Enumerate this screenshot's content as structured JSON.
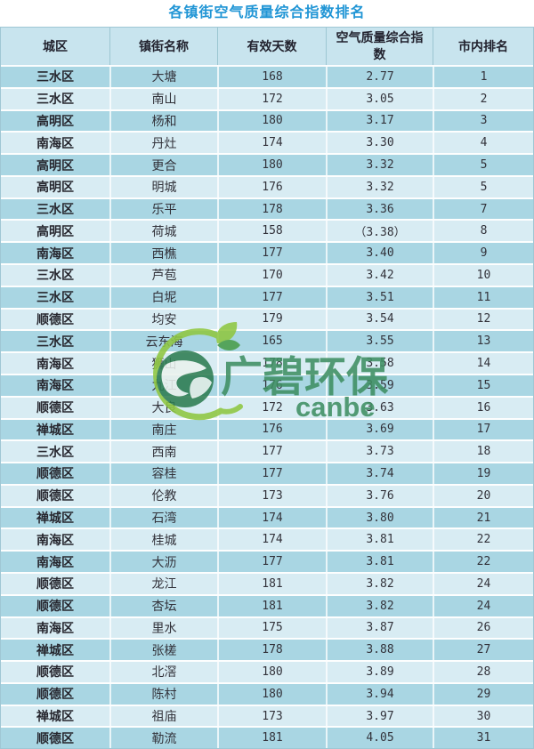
{
  "chart_data": {
    "type": "table",
    "title": "各镇街空气质量综合指数排名",
    "columns": [
      {
        "label": "城区"
      },
      {
        "label": "镇街名称"
      },
      {
        "label": "有效天数"
      },
      {
        "label": "空气质量综合指数"
      },
      {
        "label": "市内排名"
      }
    ],
    "fields": [
      "district",
      "town",
      "days",
      "index",
      "rank"
    ],
    "rows": [
      {
        "district": "三水区",
        "town": "大塘",
        "days": "168",
        "index": "2.77",
        "rank": "1"
      },
      {
        "district": "三水区",
        "town": "南山",
        "days": "172",
        "index": "3.05",
        "rank": "2"
      },
      {
        "district": "高明区",
        "town": "杨和",
        "days": "180",
        "index": "3.17",
        "rank": "3"
      },
      {
        "district": "南海区",
        "town": "丹灶",
        "days": "174",
        "index": "3.30",
        "rank": "4"
      },
      {
        "district": "高明区",
        "town": "更合",
        "days": "180",
        "index": "3.32",
        "rank": "5"
      },
      {
        "district": "高明区",
        "town": "明城",
        "days": "176",
        "index": "3.32",
        "rank": "5"
      },
      {
        "district": "三水区",
        "town": "乐平",
        "days": "178",
        "index": "3.36",
        "rank": "7"
      },
      {
        "district": "高明区",
        "town": "荷城",
        "days": "158",
        "index": "（3.38）",
        "rank": "8"
      },
      {
        "district": "南海区",
        "town": "西樵",
        "days": "177",
        "index": "3.40",
        "rank": "9"
      },
      {
        "district": "三水区",
        "town": "芦苞",
        "days": "170",
        "index": "3.42",
        "rank": "10"
      },
      {
        "district": "三水区",
        "town": "白坭",
        "days": "177",
        "index": "3.51",
        "rank": "11"
      },
      {
        "district": "顺德区",
        "town": "均安",
        "days": "179",
        "index": "3.54",
        "rank": "12"
      },
      {
        "district": "三水区",
        "town": "云东海",
        "days": "165",
        "index": "3.55",
        "rank": "13"
      },
      {
        "district": "南海区",
        "town": "狮山",
        "days": "178",
        "index": "3.58",
        "rank": "14"
      },
      {
        "district": "南海区",
        "town": "九江",
        "days": "176",
        "index": "3.59",
        "rank": "15"
      },
      {
        "district": "顺德区",
        "town": "大良",
        "days": "172",
        "index": "3.63",
        "rank": "16"
      },
      {
        "district": "禅城区",
        "town": "南庄",
        "days": "176",
        "index": "3.69",
        "rank": "17"
      },
      {
        "district": "三水区",
        "town": "西南",
        "days": "177",
        "index": "3.73",
        "rank": "18"
      },
      {
        "district": "顺德区",
        "town": "容桂",
        "days": "177",
        "index": "3.74",
        "rank": "19"
      },
      {
        "district": "顺德区",
        "town": "伦教",
        "days": "173",
        "index": "3.76",
        "rank": "20"
      },
      {
        "district": "禅城区",
        "town": "石湾",
        "days": "174",
        "index": "3.80",
        "rank": "21"
      },
      {
        "district": "南海区",
        "town": "桂城",
        "days": "174",
        "index": "3.81",
        "rank": "22"
      },
      {
        "district": "南海区",
        "town": "大沥",
        "days": "177",
        "index": "3.81",
        "rank": "22"
      },
      {
        "district": "顺德区",
        "town": "龙江",
        "days": "181",
        "index": "3.82",
        "rank": "24"
      },
      {
        "district": "顺德区",
        "town": "杏坛",
        "days": "181",
        "index": "3.82",
        "rank": "24"
      },
      {
        "district": "南海区",
        "town": "里水",
        "days": "175",
        "index": "3.87",
        "rank": "26"
      },
      {
        "district": "禅城区",
        "town": "张槎",
        "days": "178",
        "index": "3.88",
        "rank": "27"
      },
      {
        "district": "顺德区",
        "town": "北滘",
        "days": "180",
        "index": "3.89",
        "rank": "28"
      },
      {
        "district": "顺德区",
        "town": "陈村",
        "days": "180",
        "index": "3.94",
        "rank": "29"
      },
      {
        "district": "禅城区",
        "town": "祖庙",
        "days": "173",
        "index": "3.97",
        "rank": "30"
      },
      {
        "district": "顺德区",
        "town": "勒流",
        "days": "181",
        "index": "4.05",
        "rank": "31"
      }
    ]
  },
  "watermark": {
    "brand_cn": "广碧环保",
    "brand_en": "canbe",
    "icon": "globe-leaf-logo",
    "color_globe": "#2e7d52",
    "color_text": "#3f8f63",
    "color_leaf": "#8fc741"
  },
  "colors": {
    "title": "#2095d5",
    "header_bg": "#c8e4ee",
    "row_dark": "#a9d6e3",
    "row_light": "#d8ecf3",
    "text": "#33333b"
  }
}
